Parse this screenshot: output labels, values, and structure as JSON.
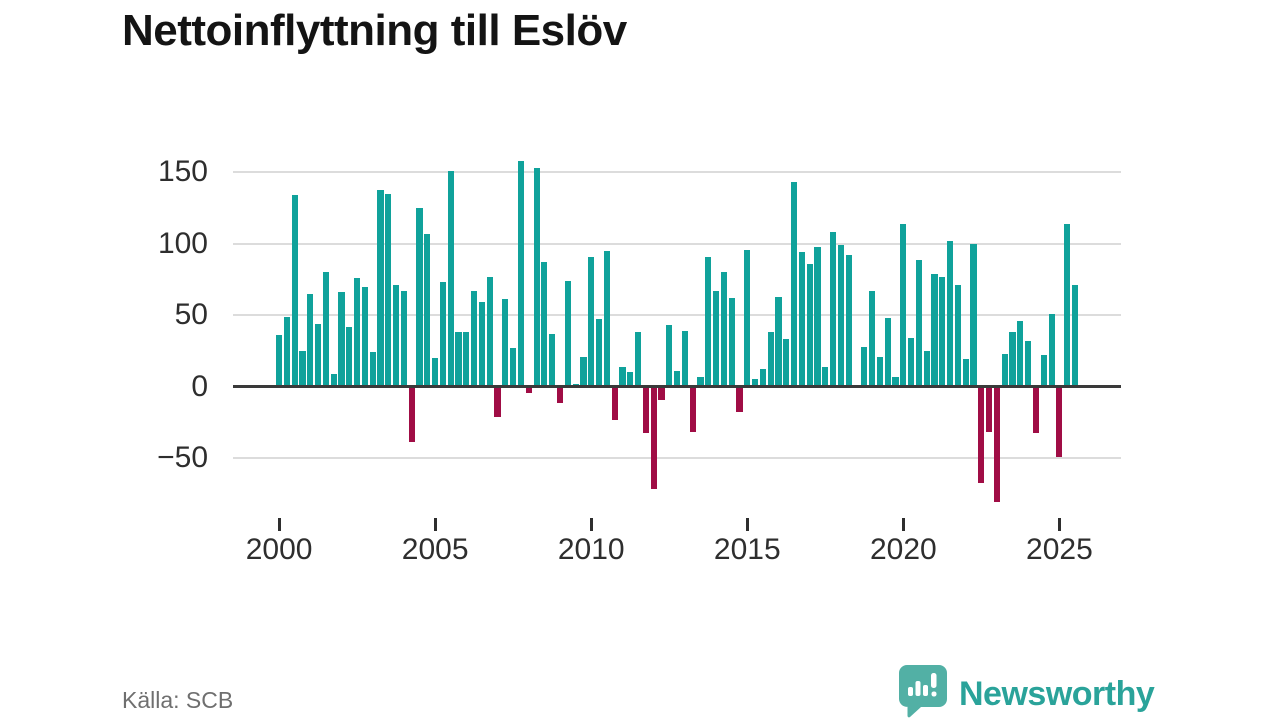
{
  "title": "Nettoinflyttning till Eslöv",
  "source": "Källa: SCB",
  "branding": {
    "logo_text": "Newsworthy",
    "logo_icon": "speech-bubble-bar-chart-icon"
  },
  "colors": {
    "positive_bar": "#10a29b",
    "negative_bar": "#a00d45",
    "grid": "#dcdcdc",
    "axis": "#3a3a3a",
    "logo_bubble": "#52b0a5",
    "logo_text": "#2aa39a",
    "title_text": "#141414",
    "tick_text": "#2e2e2e",
    "source_text": "#6f6f6f"
  },
  "chart_data": {
    "type": "bar",
    "title": "Nettoinflyttning till Eslöv",
    "xlabel": "",
    "ylabel": "",
    "frequency": "quarterly",
    "ylim": [
      -90,
      165
    ],
    "grid": "horizontal",
    "legend": "none",
    "y_ticks": [
      {
        "value": 150,
        "label": "150"
      },
      {
        "value": 100,
        "label": "100"
      },
      {
        "value": 50,
        "label": "50"
      },
      {
        "value": 0,
        "label": "0"
      },
      {
        "value": -50,
        "label": "−50"
      }
    ],
    "x_ticks": [
      {
        "year": 2000,
        "label": "2000"
      },
      {
        "year": 2005,
        "label": "2005"
      },
      {
        "year": 2010,
        "label": "2010"
      },
      {
        "year": 2015,
        "label": "2015"
      },
      {
        "year": 2020,
        "label": "2020"
      },
      {
        "year": 2025,
        "label": "2025"
      }
    ],
    "points": [
      [
        "2000-Q1",
        36
      ],
      [
        "2000-Q2",
        49
      ],
      [
        "2000-Q3",
        134
      ],
      [
        "2000-Q4",
        25
      ],
      [
        "2001-Q1",
        65
      ],
      [
        "2001-Q2",
        44
      ],
      [
        "2001-Q3",
        80
      ],
      [
        "2001-Q4",
        9
      ],
      [
        "2002-Q1",
        66
      ],
      [
        "2002-Q2",
        42
      ],
      [
        "2002-Q3",
        76
      ],
      [
        "2002-Q4",
        70
      ],
      [
        "2003-Q1",
        24
      ],
      [
        "2003-Q2",
        138
      ],
      [
        "2003-Q3",
        135
      ],
      [
        "2003-Q4",
        71
      ],
      [
        "2004-Q1",
        67
      ],
      [
        "2004-Q2",
        -38
      ],
      [
        "2004-Q3",
        125
      ],
      [
        "2004-Q4",
        107
      ],
      [
        "2005-Q1",
        20
      ],
      [
        "2005-Q2",
        73
      ],
      [
        "2005-Q3",
        151
      ],
      [
        "2005-Q4",
        38
      ],
      [
        "2006-Q1",
        38
      ],
      [
        "2006-Q2",
        67
      ],
      [
        "2006-Q3",
        59
      ],
      [
        "2006-Q4",
        77
      ],
      [
        "2007-Q1",
        -21
      ],
      [
        "2007-Q2",
        61
      ],
      [
        "2007-Q3",
        27
      ],
      [
        "2007-Q4",
        158
      ],
      [
        "2008-Q1",
        -4
      ],
      [
        "2008-Q2",
        153
      ],
      [
        "2008-Q3",
        87
      ],
      [
        "2008-Q4",
        37
      ],
      [
        "2009-Q1",
        -11
      ],
      [
        "2009-Q2",
        74
      ],
      [
        "2009-Q3",
        2
      ],
      [
        "2009-Q4",
        21
      ],
      [
        "2010-Q1",
        91
      ],
      [
        "2010-Q2",
        47
      ],
      [
        "2010-Q3",
        95
      ],
      [
        "2010-Q4",
        -23
      ],
      [
        "2011-Q1",
        14
      ],
      [
        "2011-Q2",
        10
      ],
      [
        "2011-Q3",
        38
      ],
      [
        "2011-Q4",
        -32
      ],
      [
        "2012-Q1",
        -71
      ],
      [
        "2012-Q2",
        -9
      ],
      [
        "2012-Q3",
        43
      ],
      [
        "2012-Q4",
        11
      ],
      [
        "2013-Q1",
        39
      ],
      [
        "2013-Q2",
        -31
      ],
      [
        "2013-Q3",
        7
      ],
      [
        "2013-Q4",
        91
      ],
      [
        "2014-Q1",
        67
      ],
      [
        "2014-Q2",
        80
      ],
      [
        "2014-Q3",
        62
      ],
      [
        "2014-Q4",
        -17
      ],
      [
        "2015-Q1",
        96
      ],
      [
        "2015-Q2",
        5
      ],
      [
        "2015-Q3",
        12
      ],
      [
        "2015-Q4",
        38
      ],
      [
        "2016-Q1",
        63
      ],
      [
        "2016-Q2",
        33
      ],
      [
        "2016-Q3",
        143
      ],
      [
        "2016-Q4",
        94
      ],
      [
        "2017-Q1",
        86
      ],
      [
        "2017-Q2",
        98
      ],
      [
        "2017-Q3",
        14
      ],
      [
        "2017-Q4",
        108
      ],
      [
        "2018-Q1",
        99
      ],
      [
        "2018-Q2",
        92
      ],
      [
        "2018-Q3",
        0
      ],
      [
        "2018-Q4",
        28
      ],
      [
        "2019-Q1",
        67
      ],
      [
        "2019-Q2",
        21
      ],
      [
        "2019-Q3",
        48
      ],
      [
        "2019-Q4",
        7
      ],
      [
        "2020-Q1",
        114
      ],
      [
        "2020-Q2",
        34
      ],
      [
        "2020-Q3",
        89
      ],
      [
        "2020-Q4",
        25
      ],
      [
        "2021-Q1",
        79
      ],
      [
        "2021-Q2",
        77
      ],
      [
        "2021-Q3",
        102
      ],
      [
        "2021-Q4",
        71
      ],
      [
        "2022-Q1",
        19
      ],
      [
        "2022-Q2",
        100
      ],
      [
        "2022-Q3",
        -67
      ],
      [
        "2022-Q4",
        -31
      ],
      [
        "2023-Q1",
        -80
      ],
      [
        "2023-Q2",
        23
      ],
      [
        "2023-Q3",
        38
      ],
      [
        "2023-Q4",
        46
      ],
      [
        "2024-Q1",
        32
      ],
      [
        "2024-Q2",
        -32
      ],
      [
        "2024-Q3",
        22
      ],
      [
        "2024-Q4",
        51
      ],
      [
        "2025-Q1",
        -49
      ],
      [
        "2025-Q2",
        114
      ],
      [
        "2025-Q3",
        71
      ]
    ]
  }
}
